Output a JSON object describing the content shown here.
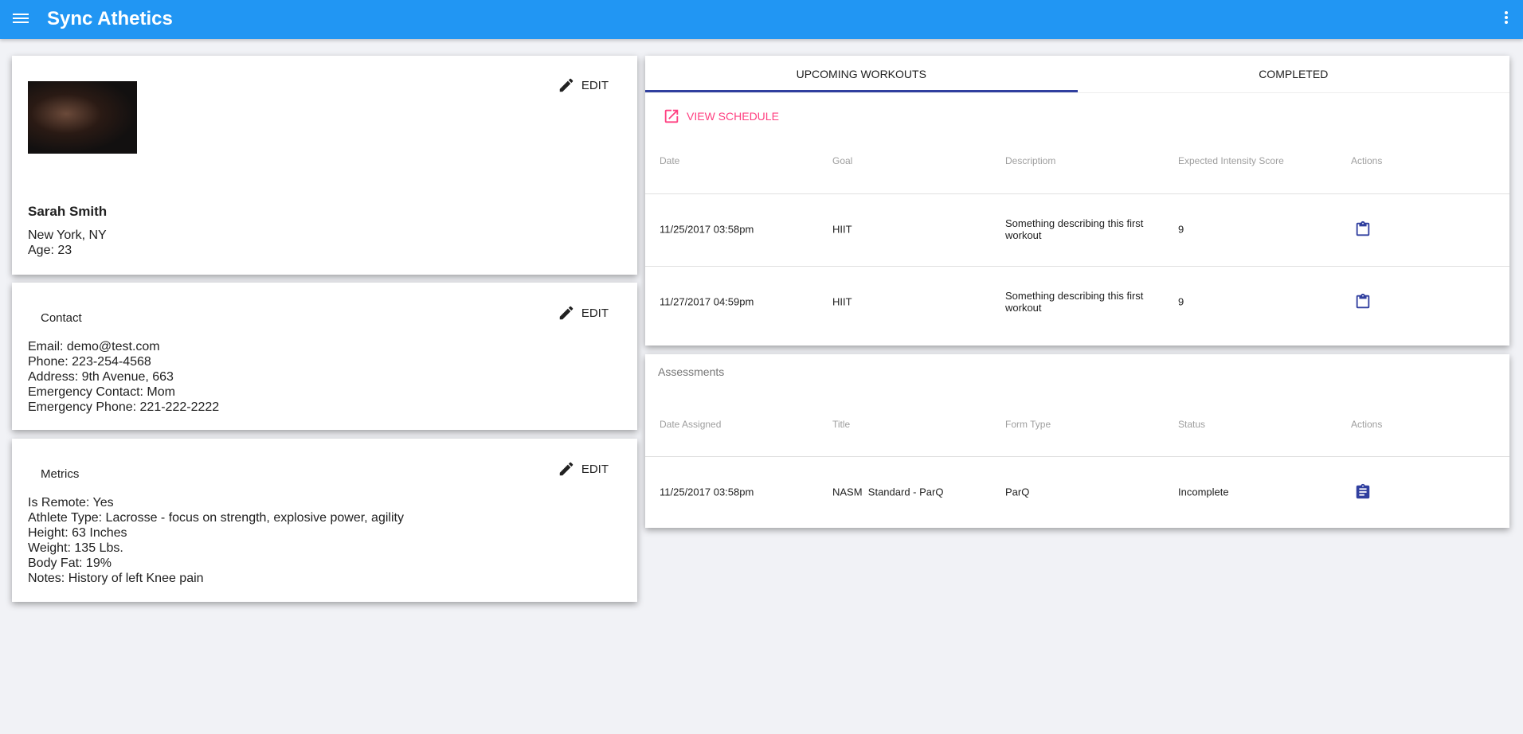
{
  "app": {
    "title": "Sync Athetics",
    "menu_icon": "menu-icon",
    "more_icon": "more-vert-icon",
    "accent": "#2196f3"
  },
  "profile": {
    "edit_label": "EDIT",
    "name": "Sarah Smith",
    "location": "New York, NY",
    "age": "Age: 23"
  },
  "contact": {
    "title": "Contact",
    "edit_label": "EDIT",
    "lines": [
      "Email: demo@test.com",
      "Phone: 223-254-4568",
      "Address: 9th Avenue, 663",
      "Emergency Contact: Mom",
      "Emergency Phone: 221-222-2222"
    ]
  },
  "metrics": {
    "title": "Metrics",
    "edit_label": "EDIT",
    "lines": [
      "Is Remote: Yes",
      "Athlete Type: Lacrosse - focus on strength, explosive power, agility",
      "Height: 63 Inches",
      "Weight: 135 Lbs.",
      "Body Fat: 19%",
      "Notes: History of left Knee pain"
    ]
  },
  "workouts": {
    "tabs": [
      {
        "label": "UPCOMING WORKOUTS",
        "active": true
      },
      {
        "label": "COMPLETED",
        "active": false
      }
    ],
    "view_schedule": "VIEW SCHEDULE",
    "columns": [
      "Date",
      "Goal",
      "Descriptiom",
      "Expected Intensity Score",
      "Actions"
    ],
    "rows": [
      [
        "11/25/2017 03:58pm",
        "HIIT",
        "Something describing this first workout",
        "9"
      ],
      [
        "11/27/2017 04:59pm",
        "HIIT",
        "Something describing this first workout",
        "9"
      ]
    ]
  },
  "assessments": {
    "title": "Assessments",
    "columns": [
      "Date Assigned",
      "Title",
      "Form Type",
      "Status",
      "Actions"
    ],
    "rows": [
      [
        "11/25/2017 03:58pm",
        "NASM  Standard - ParQ",
        "ParQ",
        "Incomplete"
      ]
    ]
  }
}
